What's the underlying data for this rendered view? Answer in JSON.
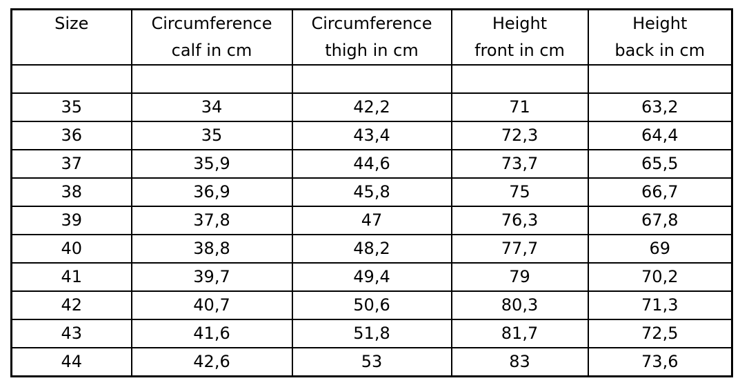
{
  "header": {
    "row1": [
      "Size",
      "Circumference",
      "Circumference",
      "Height",
      "Height"
    ],
    "row2": [
      "",
      "calf in cm",
      "thigh in cm",
      "front in cm",
      "back in cm"
    ]
  },
  "rows": [
    [
      "35",
      "34",
      "42,2",
      "71",
      "63,2"
    ],
    [
      "36",
      "35",
      "43,4",
      "72,3",
      "64,4"
    ],
    [
      "37",
      "35,9",
      "44,6",
      "73,7",
      "65,5"
    ],
    [
      "38",
      "36,9",
      "45,8",
      "75",
      "66,7"
    ],
    [
      "39",
      "37,8",
      "47",
      "76,3",
      "67,8"
    ],
    [
      "40",
      "38,8",
      "48,2",
      "77,7",
      "69"
    ],
    [
      "41",
      "39,7",
      "49,4",
      "79",
      "70,2"
    ],
    [
      "42",
      "40,7",
      "50,6",
      "80,3",
      "71,3"
    ],
    [
      "43",
      "41,6",
      "51,8",
      "81,7",
      "72,5"
    ],
    [
      "44",
      "42,6",
      "53",
      "83",
      "73,6"
    ]
  ]
}
